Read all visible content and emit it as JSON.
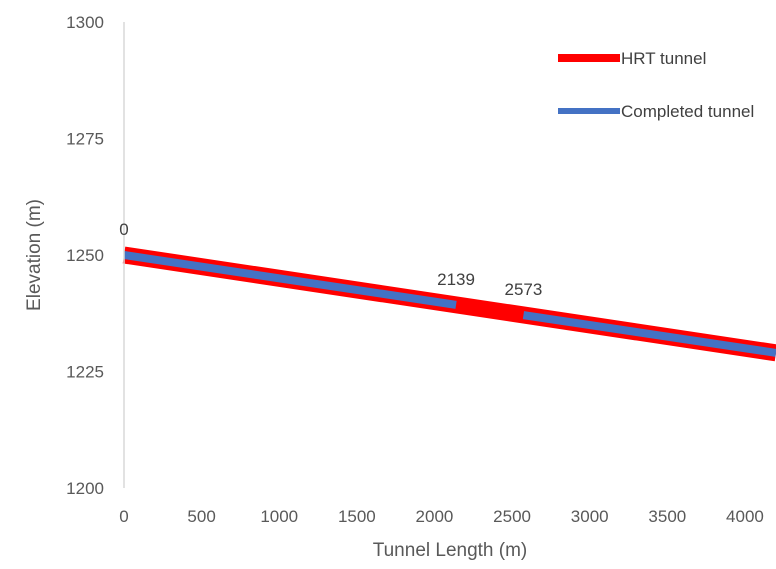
{
  "chart_data": {
    "type": "line",
    "title": "",
    "xlabel": "Tunnel Length (m)",
    "ylabel": "Elevation (m)",
    "xlim": [
      0,
      4200
    ],
    "ylim": [
      1200,
      1300
    ],
    "x_ticks": [
      "0",
      "500",
      "1000",
      "1500",
      "2000",
      "2500",
      "3000",
      "3500",
      "4000"
    ],
    "y_ticks": [
      "1200",
      "1225",
      "1250",
      "1275",
      "1300"
    ],
    "grid": false,
    "legend_position": "top-right",
    "series": [
      {
        "name": "HRT tunnel",
        "color": "#ff0000",
        "points": [
          [
            0,
            1250
          ],
          [
            4200,
            1229
          ]
        ]
      },
      {
        "name": "Completed tunnel",
        "color": "#4472c4",
        "segments": [
          [
            [
              0,
              1250
            ],
            [
              2139,
              1239.3
            ]
          ],
          [
            [
              2573,
              1237.1
            ],
            [
              4200,
              1229
            ]
          ]
        ]
      }
    ],
    "annotations": [
      {
        "text": "0",
        "x": 0,
        "y": 1250
      },
      {
        "text": "2139",
        "x": 2139,
        "y": 1239.3
      },
      {
        "text": "2573",
        "x": 2573,
        "y": 1237.1
      }
    ]
  }
}
